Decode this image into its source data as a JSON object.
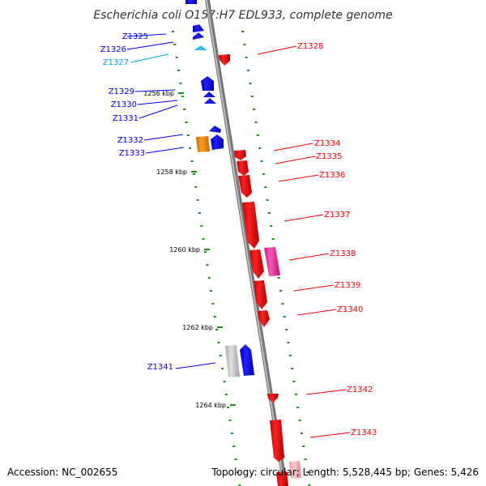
{
  "title": "Escherichia coli O157:H7 EDL933, complete genome",
  "footer": {
    "accession": "Accession: NC_002655",
    "summary": "Topology: circular; Length: 5,528,445 bp; Genes: 5,426"
  },
  "colors": {
    "forward_gene": "#0000ff",
    "reverse_gene": "#ff0000",
    "highlight_blue": "#00aaee",
    "pseudo_gray": "#c0c0c0",
    "orange": "#ff8c00",
    "pink": "#ee3399",
    "light_pink": "#ffaabb",
    "backbone": "#888888",
    "tick": "#228822"
  },
  "ticks": [
    {
      "kbp": 1256,
      "label": "1256 kbp"
    },
    {
      "kbp": 1258,
      "label": "1258 kbp"
    },
    {
      "kbp": 1260,
      "label": "1260 kbp"
    },
    {
      "kbp": 1262,
      "label": "1262 kbp"
    },
    {
      "kbp": 1264,
      "label": "1264 kbp"
    }
  ],
  "genes": [
    {
      "name": "Z1325",
      "strand": "+",
      "color": "forward_gene"
    },
    {
      "name": "Z1326",
      "strand": "+",
      "color": "forward_gene"
    },
    {
      "name": "Z1327",
      "strand": "+",
      "color": "highlight_blue"
    },
    {
      "name": "Z1328",
      "strand": "-",
      "color": "reverse_gene"
    },
    {
      "name": "Z1329",
      "strand": "+",
      "color": "forward_gene"
    },
    {
      "name": "Z1330",
      "strand": "+",
      "color": "forward_gene"
    },
    {
      "name": "Z1331",
      "strand": "+",
      "color": "forward_gene"
    },
    {
      "name": "Z1332",
      "strand": "+",
      "color": "forward_gene"
    },
    {
      "name": "Z1333",
      "strand": "+",
      "color": "forward_gene"
    },
    {
      "name": "Z1334",
      "strand": "-",
      "color": "reverse_gene"
    },
    {
      "name": "Z1335",
      "strand": "-",
      "color": "reverse_gene"
    },
    {
      "name": "Z1336",
      "strand": "-",
      "color": "reverse_gene"
    },
    {
      "name": "Z1337",
      "strand": "-",
      "color": "reverse_gene"
    },
    {
      "name": "Z1338",
      "strand": "-",
      "color": "reverse_gene"
    },
    {
      "name": "Z1339",
      "strand": "-",
      "color": "reverse_gene"
    },
    {
      "name": "Z1340",
      "strand": "-",
      "color": "reverse_gene"
    },
    {
      "name": "Z1341",
      "strand": "+",
      "color": "forward_gene"
    },
    {
      "name": "Z1342",
      "strand": "-",
      "color": "reverse_gene"
    },
    {
      "name": "Z1343",
      "strand": "-",
      "color": "reverse_gene"
    }
  ]
}
